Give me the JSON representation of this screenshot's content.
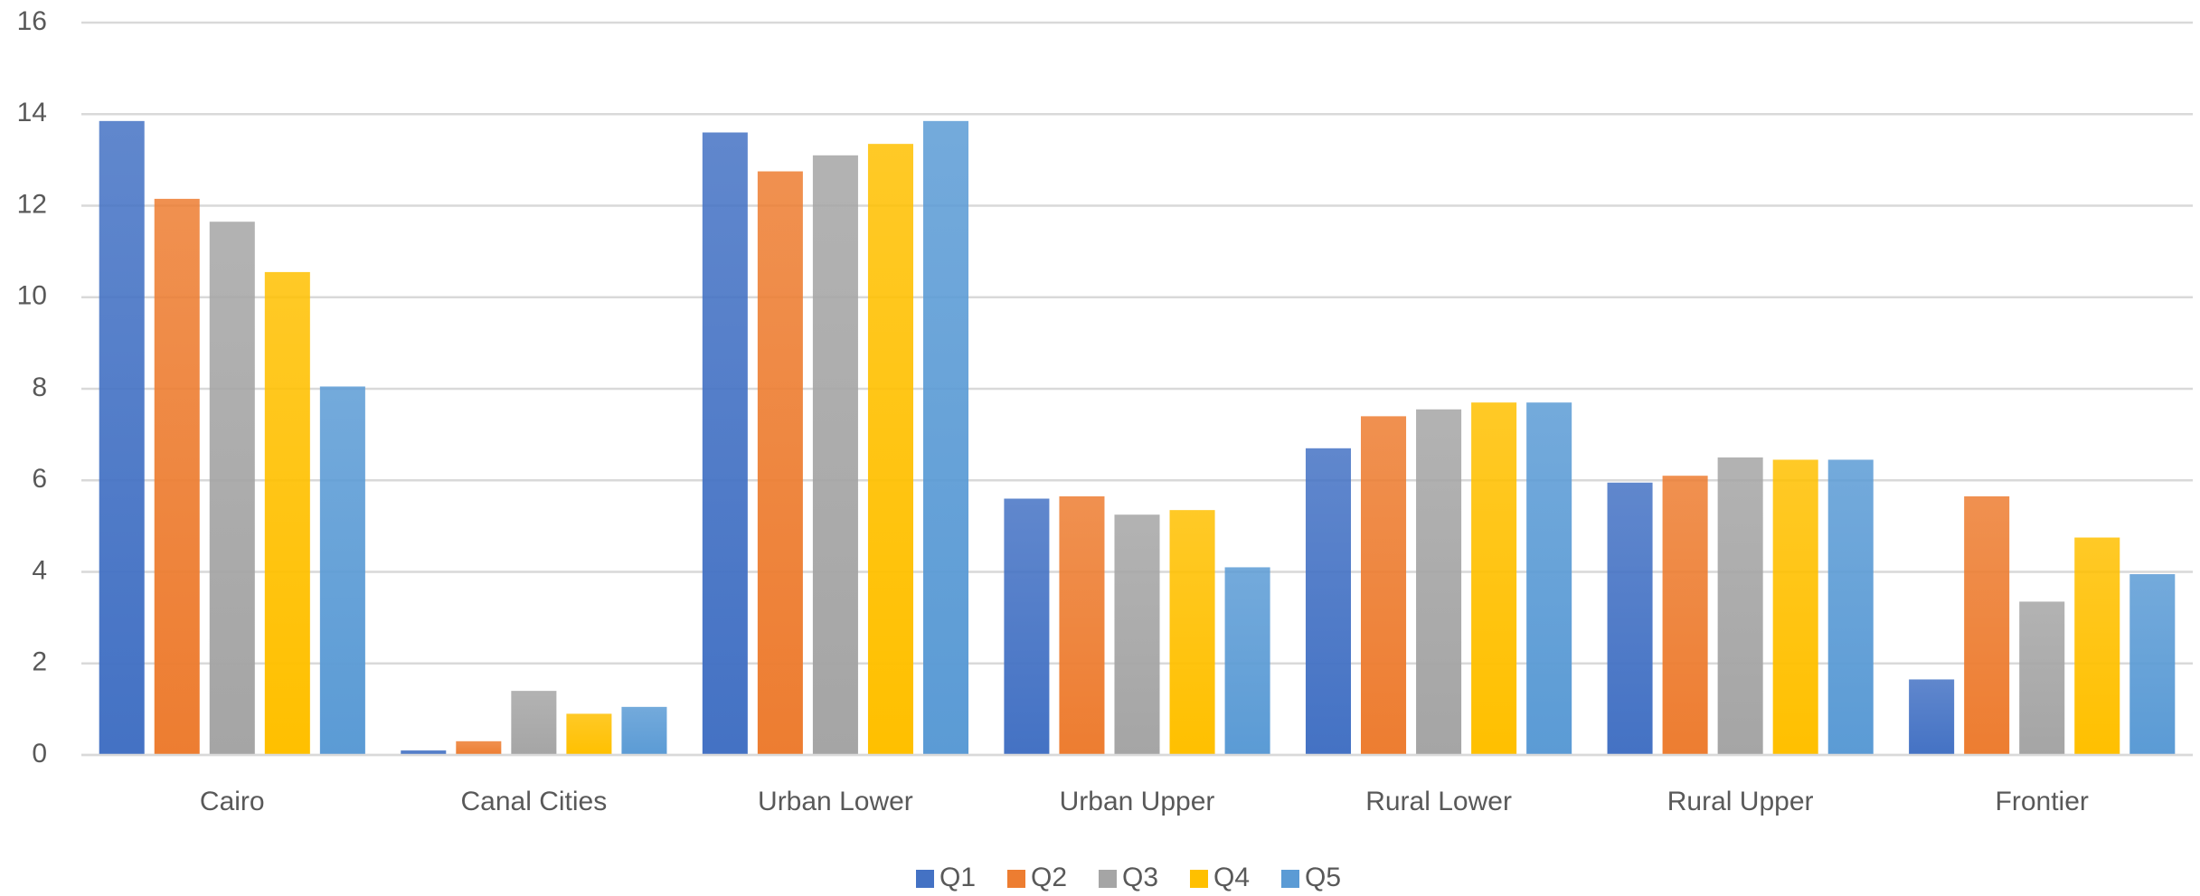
{
  "chart_data": {
    "type": "bar",
    "categories": [
      "Cairo",
      "Canal Cities",
      "Urban Lower",
      "Urban Upper",
      "Rural Lower",
      "Rural Upper",
      "Frontier"
    ],
    "series": [
      {
        "name": "Q1",
        "color": "#4472c4",
        "values": [
          13.85,
          0.1,
          13.6,
          5.6,
          6.7,
          5.95,
          1.65
        ]
      },
      {
        "name": "Q2",
        "color": "#ed7d31",
        "values": [
          12.15,
          0.3,
          12.75,
          5.65,
          7.4,
          6.1,
          5.65
        ]
      },
      {
        "name": "Q3",
        "color": "#a5a5a5",
        "values": [
          11.65,
          1.4,
          13.1,
          5.25,
          7.55,
          6.5,
          3.35
        ]
      },
      {
        "name": "Q4",
        "color": "#ffc000",
        "values": [
          10.55,
          0.9,
          13.35,
          5.35,
          7.7,
          6.45,
          4.75
        ]
      },
      {
        "name": "Q5",
        "color": "#5b9bd5",
        "values": [
          8.05,
          1.05,
          13.85,
          4.1,
          7.7,
          6.45,
          3.95
        ]
      }
    ],
    "ylim": [
      0,
      16
    ],
    "yticks": [
      0,
      2,
      4,
      6,
      8,
      10,
      12,
      14,
      16
    ],
    "grid": true,
    "legend": "bottom"
  }
}
